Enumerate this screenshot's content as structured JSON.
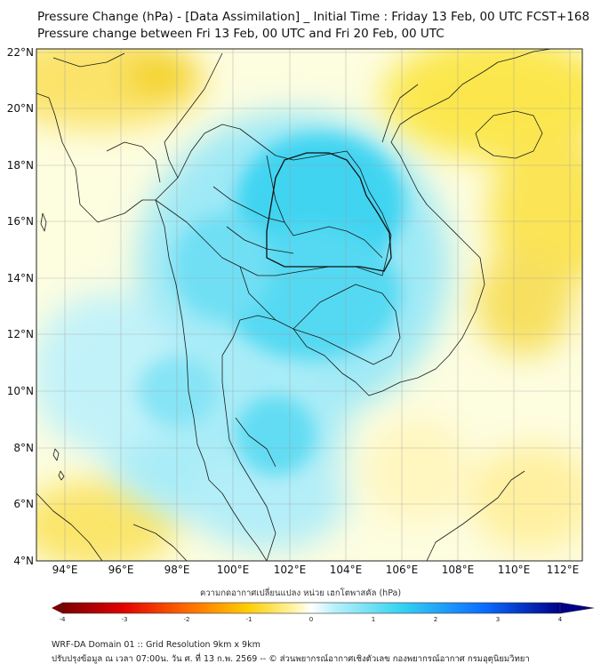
{
  "header": {
    "title_line1": "Pressure Change (hPa) - [Data Assimilation] _ Initial Time : Friday 13 Feb, 00 UTC FCST+168",
    "title_line2": "Pressure change between Fri 13 Feb, 00 UTC and Fri 20 Feb, 00 UTC"
  },
  "map": {
    "lat_labels": [
      "22°N",
      "20°N",
      "18°N",
      "16°N",
      "14°N",
      "12°N",
      "10°N",
      "8°N",
      "6°N",
      "4°N"
    ],
    "lon_labels": [
      "94°E",
      "96°E",
      "98°E",
      "100°E",
      "102°E",
      "104°E",
      "106°E",
      "108°E",
      "110°E",
      "112°E"
    ],
    "lat_range": [
      4,
      22.3
    ],
    "lon_range": [
      93,
      112.4
    ],
    "colors": {
      "neutral": "#fdfde0",
      "positive_light": "#a8ecf8",
      "positive": "#3fd4f0",
      "negative_light": "#fff4a8",
      "negative": "#f7dc2a",
      "border": "#1a1a1a",
      "grid": "#9a9a9a"
    }
  },
  "colorbar": {
    "label": "ความกดอากาศเปลี่ยนแปลง หน่วย เฮกโตพาสคัล (hPa)",
    "ticks": [
      "-4",
      "-3",
      "-2",
      "-1",
      "0",
      "1",
      "2",
      "3",
      "4"
    ],
    "range": [
      -4,
      4
    ],
    "colors": [
      "#7a0000",
      "#e00000",
      "#ff6a00",
      "#ffcc00",
      "#fff6b0",
      "#ffffff",
      "#b4f0fa",
      "#36d3f2",
      "#0a6aff",
      "#000088"
    ]
  },
  "footer": {
    "line1": "WRF-DA Domain 01 :: Grid Resolution 9km x 9km",
    "line2": "ปรับปรุงข้อมูล ณ เวลา 07:00น. วัน ศ. ที่ 13 ก.พ. 2569 -- © ส่วนพยากรณ์อากาศเชิงตัวเลข กองพยากรณ์อากาศ กรมอุตุนิยมวิทยา"
  }
}
